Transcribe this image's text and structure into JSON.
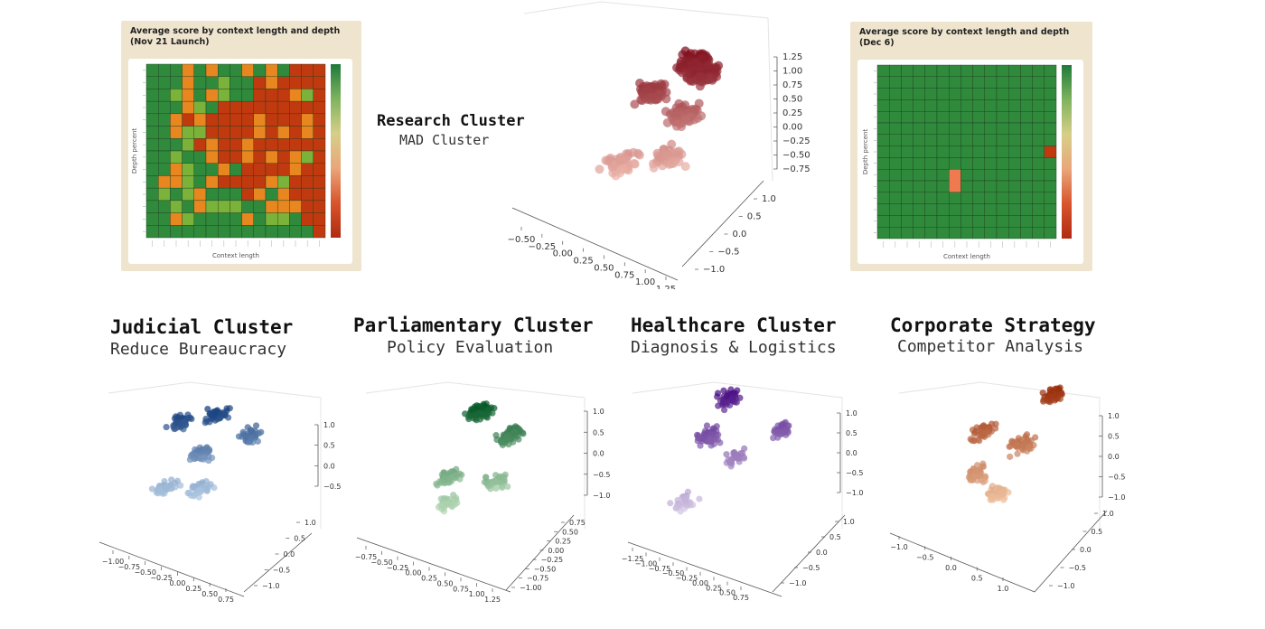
{
  "chart_data": [
    {
      "type": "heatmap",
      "title": "Average score by context length and depth",
      "subtitle": "(Nov 21 Launch)",
      "xlabel": "Context length",
      "ylabel": "Depth percent",
      "grid": [
        "GGGOGOGGOGOGRRR",
        "GGGOGGLGGRORRRR",
        "GGLOGOLGGRRROLR",
        "GGGOLGRRRRRRRRR",
        "GGORORRRRORRROR",
        "GGOLLRRRROROROR",
        "GGGLRORRORRRRRR",
        "GGLGGORROROROLR",
        "GGOLGGOGRRRRORR",
        "GOOLGORRRROLRRR",
        "GLGLOGGGROGORRR",
        "GGLGOLLLGGOOORR",
        "GGOLGGGGOGLLGRR",
        "GGGGGGGGGGGGGGR"
      ],
      "palette": {
        "G": "#2f8a3c",
        "L": "#7bb23a",
        "O": "#e8861f",
        "R": "#c0390f"
      },
      "colorbar": [
        "#1f7a3a",
        "#7fb35e",
        "#d6cf88",
        "#e9a67a",
        "#d8542c",
        "#b02a10"
      ]
    },
    {
      "type": "scatter",
      "title": "Research Cluster",
      "subtitle": "MAD Cluster",
      "colormap": "Reds",
      "z_ticks": [
        "1.25",
        "1.00",
        "0.75",
        "0.50",
        "0.25",
        "0.00",
        "−0.25",
        "−0.50",
        "−0.75"
      ],
      "x_ticks": [
        "−0.50",
        "−0.25",
        "0.00",
        "0.25",
        "0.50",
        "0.75",
        "1.00",
        "1.25"
      ],
      "y_ticks": [
        "1.0",
        "0.5",
        "0.0",
        "−0.5",
        "−1.0"
      ],
      "clusters": [
        {
          "cx": 0.5,
          "cy": 0.8,
          "cz": 0.9,
          "n": 80
        },
        {
          "cx": 0.0,
          "cy": 0.5,
          "cz": 0.5,
          "n": 70
        },
        {
          "cx": 0.8,
          "cy": 0.3,
          "cz": 0.8,
          "n": 80
        },
        {
          "cx": 0.6,
          "cy": 0.0,
          "cz": 0.1,
          "n": 60
        },
        {
          "cx": -0.2,
          "cy": -0.3,
          "cz": -0.6,
          "n": 50
        },
        {
          "cx": 0.6,
          "cy": -0.6,
          "cz": -0.5,
          "n": 45
        }
      ]
    },
    {
      "type": "heatmap",
      "title": "Average score by context length and depth",
      "subtitle": "(Dec 6)",
      "xlabel": "Context length",
      "ylabel": "Depth percent",
      "grid": [
        "GGGGGGGGGGGGGGG",
        "GGGGGGGGGGGGGGG",
        "GGGGGGGGGGGGGGG",
        "GGGGGGGGGGGGGGG",
        "GGGGGGGGGGGGGGG",
        "GGGGGGGGGGGGGGG",
        "GGGGGGGGGGGGGGG",
        "GGGGGGGGGGGGGGR",
        "GGGGGGGGGGGGGGG",
        "GGGGGGGGGGGGGGG",
        "GGGGGGGGGGGGGGG",
        "GGGGGGGGGGGGGGG",
        "GGGGGGGGGGGGGGG",
        "GGGGGGGGGGGGGGG",
        "GGGGGGGGGGGGGGG"
      ],
      "palette": {
        "G": "#2f8a3c",
        "L": "#7bb23a",
        "O": "#e8861f",
        "R": "#c0390f",
        "P": "#f07a50"
      },
      "highlight": {
        "col": 6,
        "row_start": 9,
        "row_end": 10,
        "color": "#f07a50"
      },
      "colorbar": [
        "#1f7a3a",
        "#7fb35e",
        "#d6cf88",
        "#e9a67a",
        "#d8542c",
        "#b02a10"
      ]
    },
    {
      "type": "scatter",
      "title": "Judicial Cluster",
      "subtitle": "Reduce Bureaucracy",
      "colormap": "Blues",
      "z_ticks": [
        "1.0",
        "0.5",
        "0.0",
        "−0.5"
      ],
      "x_ticks": [
        "−1.00",
        "−0.75",
        "−0.50",
        "−0.25",
        "0.00",
        "0.25",
        "0.50",
        "0.75"
      ],
      "y_ticks": [
        "1.0",
        "0.5",
        "0.0",
        "−0.5",
        "−1.0"
      ],
      "clusters": [
        {
          "cx": -0.6,
          "cy": 0.6,
          "cz": 0.7,
          "n": 45
        },
        {
          "cx": 0.1,
          "cy": 0.6,
          "cz": 0.8,
          "n": 45
        },
        {
          "cx": 0.0,
          "cy": 0.1,
          "cz": 0.0,
          "n": 50
        },
        {
          "cx": 0.9,
          "cy": 0.3,
          "cz": 0.3,
          "n": 40
        },
        {
          "cx": -0.5,
          "cy": -0.4,
          "cz": -0.6,
          "n": 35
        },
        {
          "cx": 0.3,
          "cy": -0.6,
          "cz": -0.6,
          "n": 40
        }
      ]
    },
    {
      "type": "scatter",
      "title": "Parliamentary Cluster",
      "subtitle": "Policy Evaluation",
      "colormap": "Greens",
      "z_ticks": [
        "1.0",
        "0.5",
        "0.0",
        "−0.5",
        "−1.0"
      ],
      "x_ticks": [
        "−0.75",
        "−0.50",
        "−0.25",
        "0.00",
        "0.25",
        "0.50",
        "0.75",
        "1.00",
        "1.25"
      ],
      "y_ticks": [
        "0.75",
        "0.50",
        "0.25",
        "0.00",
        "−0.25",
        "−0.50",
        "−0.75",
        "−1.00"
      ],
      "clusters": [
        {
          "cx": -0.2,
          "cy": 0.6,
          "cz": 0.8,
          "n": 70
        },
        {
          "cx": 0.5,
          "cy": 0.3,
          "cz": 0.2,
          "n": 70
        },
        {
          "cx": -0.3,
          "cy": -0.3,
          "cz": -0.5,
          "n": 40
        },
        {
          "cx": 0.6,
          "cy": -0.4,
          "cz": -0.7,
          "n": 35
        },
        {
          "cx": -0.1,
          "cy": -0.7,
          "cz": -1.0,
          "n": 30
        }
      ]
    },
    {
      "type": "scatter",
      "title": "Healthcare Cluster",
      "subtitle": "Diagnosis & Logistics",
      "colormap": "Purples",
      "z_ticks": [
        "1.0",
        "0.5",
        "0.0",
        "−0.5",
        "−1.0"
      ],
      "x_ticks": [
        "−1.25",
        "−1.00",
        "−0.75",
        "−0.50",
        "−0.25",
        "0.00",
        "0.25",
        "0.50",
        "0.75"
      ],
      "y_ticks": [
        "1.0",
        "0.5",
        "0.0",
        "−0.5",
        "−1.0"
      ],
      "clusters": [
        {
          "cx": -0.2,
          "cy": 0.7,
          "cz": 1.0,
          "n": 45
        },
        {
          "cx": -0.4,
          "cy": 0.2,
          "cz": 0.3,
          "n": 60
        },
        {
          "cx": 0.2,
          "cy": 0.1,
          "cz": -0.2,
          "n": 30
        },
        {
          "cx": 1.0,
          "cy": 0.3,
          "cz": 0.3,
          "n": 30
        },
        {
          "cx": -0.5,
          "cy": -0.6,
          "cz": -0.9,
          "n": 30
        }
      ]
    },
    {
      "type": "scatter",
      "title": "Corporate Strategy",
      "subtitle": "Competitor Analysis",
      "colormap": "Oranges",
      "z_ticks": [
        "1.0",
        "0.5",
        "0.0",
        "−0.5",
        "−1.0"
      ],
      "x_ticks": [
        "−1.0",
        "−0.5",
        "0.0",
        "0.5",
        "1.0"
      ],
      "y_ticks": [
        "1.0",
        "0.5",
        "0.0",
        "−0.5",
        "−1.0"
      ],
      "clusters": [
        {
          "cx": 0.9,
          "cy": 0.7,
          "cz": 1.2,
          "n": 40
        },
        {
          "cx": -0.4,
          "cy": 0.4,
          "cz": 0.5,
          "n": 55
        },
        {
          "cx": 0.5,
          "cy": 0.2,
          "cz": 0.2,
          "n": 45
        },
        {
          "cx": -0.2,
          "cy": -0.3,
          "cz": -0.3,
          "n": 45
        },
        {
          "cx": 0.3,
          "cy": -0.5,
          "cz": -0.8,
          "n": 45
        }
      ]
    }
  ]
}
